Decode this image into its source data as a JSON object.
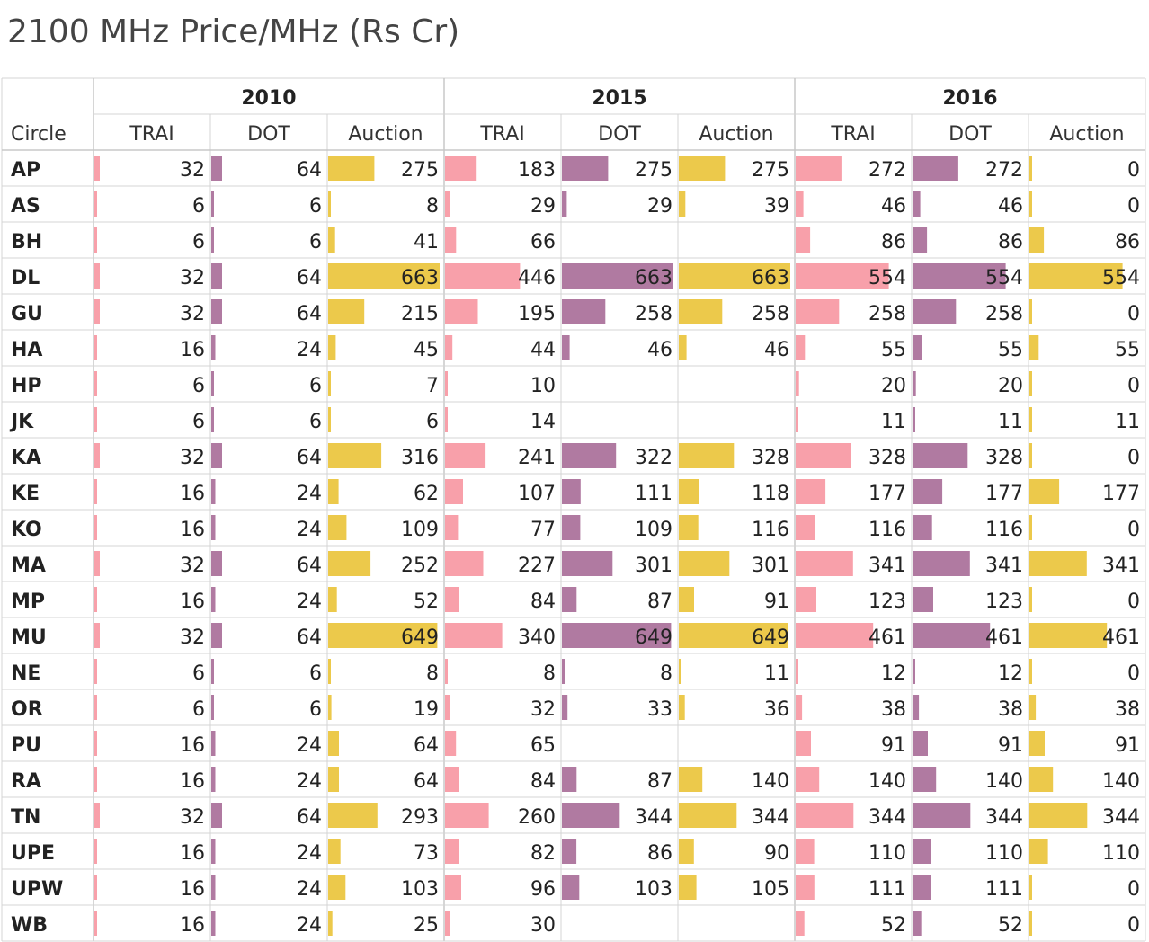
{
  "title": "2100 MHz Price/MHz (Rs Cr)",
  "chart_data": {
    "type": "table",
    "title": "2100 MHz Price/MHz (Rs Cr)",
    "row_header": "Circle",
    "years": [
      "2010",
      "2015",
      "2016"
    ],
    "measures": [
      "TRAI",
      "DOT",
      "Auction"
    ],
    "colors": {
      "TRAI": "#f8a0aa",
      "DOT": "#b07aa1",
      "Auction": "#ecc94b"
    },
    "circles": [
      "AP",
      "AS",
      "BH",
      "DL",
      "GU",
      "HA",
      "HP",
      "JK",
      "KA",
      "KE",
      "KO",
      "MA",
      "MP",
      "MU",
      "NE",
      "OR",
      "PU",
      "RA",
      "TN",
      "UPE",
      "UPW",
      "WB"
    ],
    "series": [
      {
        "year": "2010",
        "name": "TRAI",
        "values": [
          32,
          6,
          6,
          32,
          32,
          16,
          6,
          6,
          32,
          16,
          16,
          32,
          16,
          32,
          6,
          6,
          16,
          16,
          32,
          16,
          16,
          16
        ]
      },
      {
        "year": "2010",
        "name": "DOT",
        "values": [
          64,
          6,
          6,
          64,
          64,
          24,
          6,
          6,
          64,
          24,
          24,
          64,
          24,
          64,
          6,
          6,
          24,
          24,
          64,
          24,
          24,
          24
        ]
      },
      {
        "year": "2010",
        "name": "Auction",
        "values": [
          275,
          8,
          41,
          663,
          215,
          45,
          7,
          6,
          316,
          62,
          109,
          252,
          52,
          649,
          8,
          19,
          64,
          64,
          293,
          73,
          103,
          25
        ]
      },
      {
        "year": "2015",
        "name": "TRAI",
        "values": [
          183,
          29,
          66,
          446,
          195,
          44,
          10,
          14,
          241,
          107,
          77,
          227,
          84,
          340,
          8,
          32,
          65,
          84,
          260,
          82,
          96,
          30
        ]
      },
      {
        "year": "2015",
        "name": "DOT",
        "values": [
          275,
          29,
          null,
          663,
          258,
          46,
          null,
          null,
          322,
          111,
          109,
          301,
          87,
          649,
          8,
          33,
          null,
          87,
          344,
          86,
          103,
          null
        ]
      },
      {
        "year": "2015",
        "name": "Auction",
        "values": [
          275,
          39,
          null,
          663,
          258,
          46,
          null,
          null,
          328,
          118,
          116,
          301,
          91,
          649,
          11,
          36,
          null,
          140,
          344,
          90,
          105,
          null
        ]
      },
      {
        "year": "2016",
        "name": "TRAI",
        "values": [
          272,
          46,
          86,
          554,
          258,
          55,
          20,
          11,
          328,
          177,
          116,
          341,
          123,
          461,
          12,
          38,
          91,
          140,
          344,
          110,
          111,
          52
        ]
      },
      {
        "year": "2016",
        "name": "DOT",
        "values": [
          272,
          46,
          86,
          554,
          258,
          55,
          20,
          11,
          328,
          177,
          116,
          341,
          123,
          461,
          12,
          38,
          91,
          140,
          344,
          110,
          111,
          52
        ]
      },
      {
        "year": "2016",
        "name": "Auction",
        "values": [
          0,
          0,
          86,
          554,
          0,
          55,
          0,
          11,
          0,
          177,
          0,
          341,
          0,
          461,
          0,
          38,
          91,
          140,
          344,
          110,
          0,
          0
        ]
      }
    ],
    "bar_max": 663
  }
}
